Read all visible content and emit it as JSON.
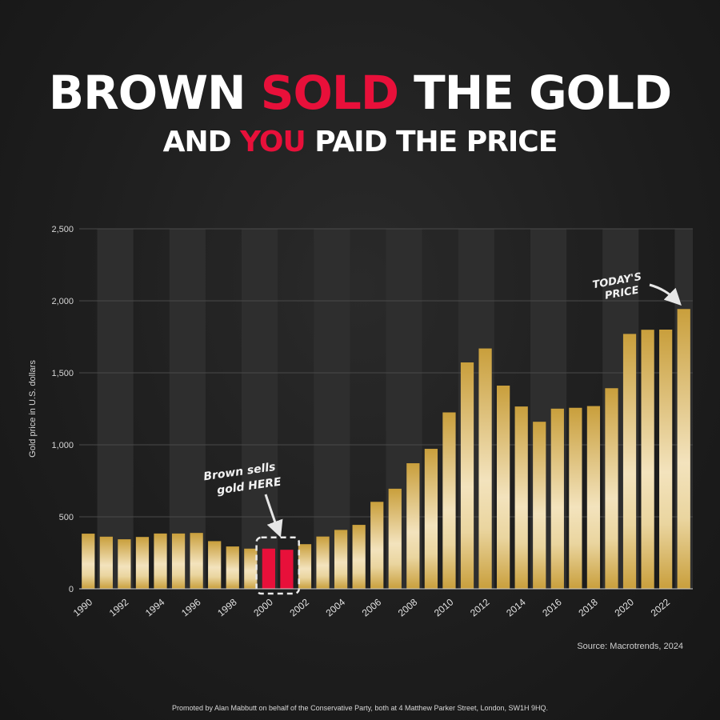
{
  "headline": {
    "line1": {
      "before": "BROWN ",
      "accent": "SOLD",
      "after": " THE GOLD"
    },
    "line2": {
      "before": "AND ",
      "accent": "YOU",
      "after": " PAID THE PRICE"
    }
  },
  "colors": {
    "accent": "#e8103a",
    "gold": "#d4ad49",
    "gold_light": "#f4e6c3",
    "background": "#1d1d1d",
    "stripe": "#2e2e2e"
  },
  "chart_data": {
    "type": "bar",
    "ylabel": "Gold price in U.S. dollars",
    "ylim": [
      0,
      2500
    ],
    "yticks": [
      0,
      500,
      1000,
      1500,
      2000,
      2500
    ],
    "ytick_labels": [
      "0",
      "500",
      "1,000",
      "1,500",
      "2,000",
      "2,500"
    ],
    "categories": [
      1990,
      1991,
      1992,
      1993,
      1994,
      1995,
      1996,
      1997,
      1998,
      1999,
      2000,
      2001,
      2002,
      2003,
      2004,
      2005,
      2006,
      2007,
      2008,
      2009,
      2010,
      2011,
      2012,
      2013,
      2014,
      2015,
      2016,
      2017,
      2018,
      2019,
      2020,
      2021,
      2022,
      2023
    ],
    "values": [
      383,
      362,
      344,
      360,
      384,
      384,
      388,
      331,
      294,
      279,
      279,
      271,
      310,
      363,
      409,
      444,
      604,
      695,
      872,
      972,
      1225,
      1572,
      1669,
      1411,
      1266,
      1160,
      1251,
      1257,
      1269,
      1393,
      1770,
      1799,
      1800,
      1943
    ],
    "xtick_labels": [
      "1990",
      "1992",
      "1994",
      "1996",
      "1998",
      "2000",
      "2002",
      "2004",
      "2006",
      "2008",
      "2010",
      "2012",
      "2014",
      "2016",
      "2018",
      "2020",
      "2022"
    ],
    "highlight_categories": [
      2000,
      2001
    ],
    "grid": true,
    "annotations": [
      {
        "text_line1": "Brown sells",
        "text_line2": "gold HERE",
        "target": 2000
      },
      {
        "text_line1": "TODAY'S",
        "text_line2": "PRICE",
        "target": 2023
      }
    ]
  },
  "source_text": "Source: Macrotrends, 2024",
  "footer_text": "Promoted by Alan Mabbutt on behalf of the Conservative Party, both at 4 Matthew Parker Street, London, SW1H 9HQ."
}
